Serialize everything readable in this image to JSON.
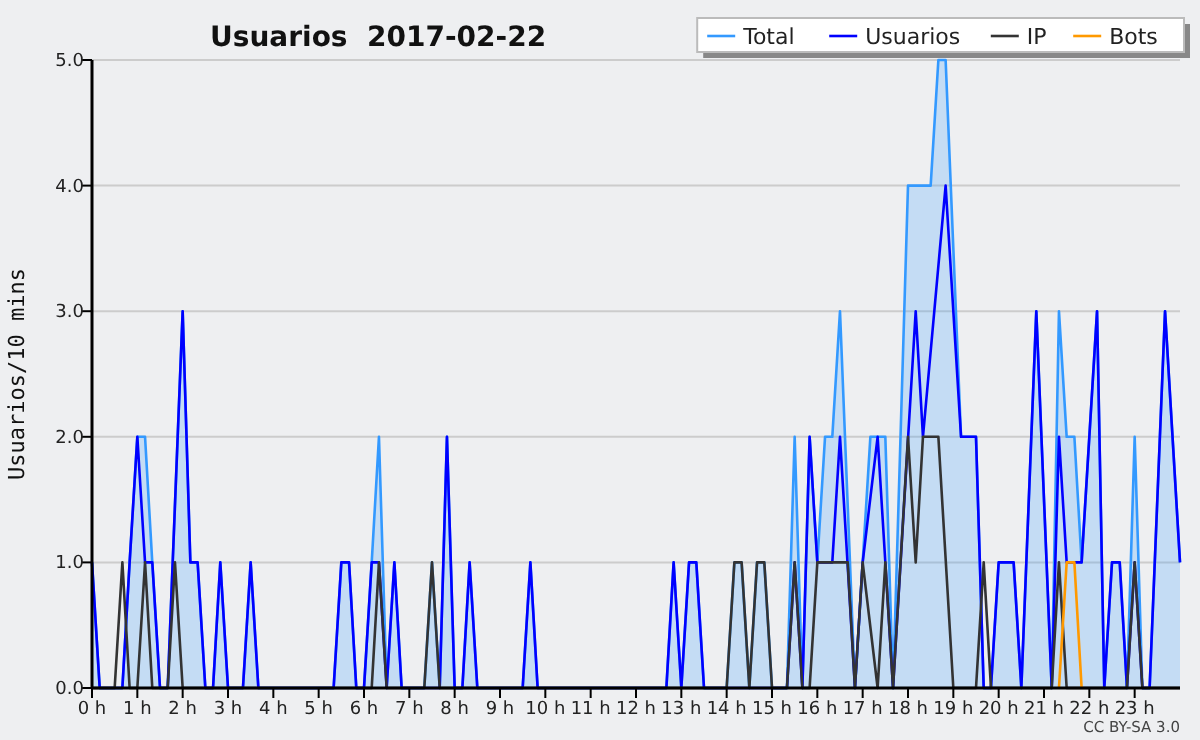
{
  "chart_data": {
    "type": "line",
    "title": "Usuarios  2017-02-22",
    "ylabel": "Usuarios/10 mins",
    "annotations": [
      "CC BY-SA 3.0"
    ],
    "xlim": [
      0,
      24
    ],
    "xticks": [
      {
        "value": 0,
        "label": "0 h"
      },
      {
        "value": 1,
        "label": "1 h"
      },
      {
        "value": 2,
        "label": "2 h"
      },
      {
        "value": 3,
        "label": "3 h"
      },
      {
        "value": 4,
        "label": "4 h"
      },
      {
        "value": 5,
        "label": "5 h"
      },
      {
        "value": 6,
        "label": "6 h"
      },
      {
        "value": 7,
        "label": "7 h"
      },
      {
        "value": 8,
        "label": "8 h"
      },
      {
        "value": 9,
        "label": "9 h"
      },
      {
        "value": 10,
        "label": "10 h"
      },
      {
        "value": 11,
        "label": "11 h"
      },
      {
        "value": 12,
        "label": "12 h"
      },
      {
        "value": 13,
        "label": "13 h"
      },
      {
        "value": 14,
        "label": "14 h"
      },
      {
        "value": 15,
        "label": "15 h"
      },
      {
        "value": 16,
        "label": "16 h"
      },
      {
        "value": 17,
        "label": "17 h"
      },
      {
        "value": 18,
        "label": "18 h"
      },
      {
        "value": 19,
        "label": "19 h"
      },
      {
        "value": 20,
        "label": "20 h"
      },
      {
        "value": 21,
        "label": "21 h"
      },
      {
        "value": 22,
        "label": "22 h"
      },
      {
        "value": 23,
        "label": "23 h"
      }
    ],
    "ylim": [
      0,
      5
    ],
    "yticks": [
      {
        "value": 0,
        "label": "0.0"
      },
      {
        "value": 1,
        "label": "1.0"
      },
      {
        "value": 2,
        "label": "2.0"
      },
      {
        "value": 3,
        "label": "3.0"
      },
      {
        "value": 4,
        "label": "4.0"
      },
      {
        "value": 5,
        "label": "5.0"
      }
    ],
    "grid": "y",
    "legend": "top right",
    "series": [
      {
        "name": "Total",
        "type": "area",
        "color": "#3399ff",
        "x": [
          0,
          0.17,
          0.67,
          0.83,
          1,
          1.17,
          1.33,
          1.5,
          1.67,
          2,
          2.17,
          2.33,
          2.5,
          2.67,
          2.83,
          3,
          3.33,
          3.5,
          3.67,
          5.33,
          5.5,
          5.67,
          5.83,
          6,
          6.17,
          6.33,
          6.5,
          6.67,
          6.83,
          7.33,
          7.5,
          7.67,
          7.83,
          8,
          8.17,
          8.33,
          8.5,
          9.5,
          9.67,
          9.83,
          12.67,
          12.83,
          13,
          13.17,
          13.33,
          13.5,
          14,
          14.17,
          14.33,
          14.5,
          14.67,
          14.83,
          15,
          15.33,
          15.5,
          15.67,
          15.83,
          16,
          16.17,
          16.33,
          16.5,
          16.83,
          17.17,
          17.5,
          17.67,
          18,
          18.5,
          18.67,
          18.83,
          19.17,
          19.5,
          19.67,
          19.83,
          20,
          20.33,
          20.5,
          20.83,
          21.17,
          21.33,
          21.5,
          21.67,
          21.83,
          22.17,
          22.33,
          22.5,
          22.67,
          22.83,
          23,
          23.17,
          23.33,
          23.67,
          24
        ],
        "values": [
          1,
          0,
          0,
          1,
          2,
          2,
          1,
          0,
          0,
          3,
          1,
          1,
          0,
          0,
          1,
          0,
          0,
          1,
          0,
          0,
          1,
          1,
          0,
          0,
          1,
          2,
          0,
          1,
          0,
          0,
          1,
          0,
          2,
          0,
          0,
          1,
          0,
          0,
          1,
          0,
          0,
          1,
          0,
          1,
          1,
          0,
          0,
          1,
          1,
          0,
          1,
          1,
          0,
          0,
          2,
          0,
          2,
          1,
          2,
          2,
          3,
          0,
          2,
          2,
          0,
          4,
          4,
          5,
          5,
          2,
          2,
          0,
          0,
          1,
          1,
          0,
          3,
          0,
          3,
          2,
          2,
          1,
          3,
          0,
          1,
          1,
          0,
          2,
          0,
          0,
          3,
          1
        ]
      },
      {
        "name": "Usuarios",
        "color": "#0000ff",
        "x": [
          0,
          0.17,
          0.67,
          0.83,
          1,
          1.17,
          1.33,
          1.5,
          1.67,
          2,
          2.17,
          2.33,
          2.5,
          2.67,
          2.83,
          3,
          3.33,
          3.5,
          3.67,
          5.33,
          5.5,
          5.67,
          5.83,
          6,
          6.17,
          6.33,
          6.5,
          6.67,
          6.83,
          7.67,
          7.83,
          8,
          8.17,
          8.33,
          8.5,
          9.5,
          9.67,
          9.83,
          12.67,
          12.83,
          13,
          13.17,
          13.33,
          13.5,
          15.33,
          15.5,
          15.67,
          15.83,
          16,
          16.33,
          16.5,
          16.83,
          17,
          17.33,
          17.67,
          18.17,
          18.33,
          18.83,
          19.17,
          19.5,
          19.67,
          19.83,
          20,
          20.33,
          20.5,
          20.83,
          21.17,
          21.33,
          21.5,
          21.83,
          22.17,
          22.33,
          22.5,
          22.67,
          22.83,
          23,
          23.17,
          23.33,
          23.67,
          24
        ],
        "values": [
          1,
          0,
          0,
          1,
          2,
          1,
          1,
          0,
          0,
          3,
          1,
          1,
          0,
          0,
          1,
          0,
          0,
          1,
          0,
          0,
          1,
          1,
          0,
          0,
          1,
          1,
          0,
          1,
          0,
          0,
          2,
          0,
          0,
          1,
          0,
          0,
          1,
          0,
          0,
          1,
          0,
          1,
          1,
          0,
          0,
          1,
          0,
          2,
          1,
          1,
          2,
          0,
          1,
          2,
          0,
          3,
          2,
          4,
          2,
          2,
          0,
          0,
          1,
          1,
          0,
          3,
          0,
          2,
          1,
          1,
          3,
          0,
          1,
          1,
          0,
          1,
          0,
          0,
          3,
          1
        ]
      },
      {
        "name": "IP",
        "color": "#333333",
        "x": [
          0,
          0.5,
          0.67,
          0.83,
          1,
          1.17,
          1.33,
          1.67,
          1.83,
          2,
          6.17,
          6.33,
          6.5,
          7.33,
          7.5,
          7.67,
          14,
          14.17,
          14.33,
          14.5,
          14.67,
          14.83,
          15,
          15.33,
          15.5,
          15.67,
          15.83,
          16,
          16.67,
          16.83,
          17,
          17.33,
          17.5,
          17.67,
          18,
          18.17,
          18.33,
          18.67,
          19,
          19.5,
          19.67,
          19.83,
          21.17,
          21.33,
          21.5,
          22.83,
          23,
          23.17,
          24
        ],
        "values": [
          0,
          0,
          1,
          0,
          0,
          1,
          0,
          0,
          1,
          0,
          0,
          1,
          0,
          0,
          1,
          0,
          0,
          1,
          1,
          0,
          1,
          1,
          0,
          0,
          1,
          0,
          0,
          1,
          1,
          0,
          1,
          0,
          1,
          0,
          2,
          1,
          2,
          2,
          0,
          0,
          1,
          0,
          0,
          1,
          0,
          0,
          1,
          0,
          0
        ]
      },
      {
        "name": "Bots",
        "color": "#ff9900",
        "x": [
          21.33,
          21.5,
          21.67,
          21.83
        ],
        "values": [
          0,
          1,
          1,
          0
        ]
      }
    ]
  }
}
